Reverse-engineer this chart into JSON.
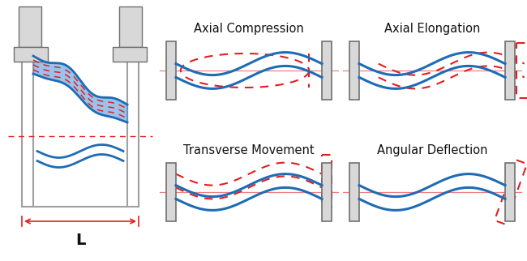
{
  "bg_color": "#ffffff",
  "blue": "#1e6cb5",
  "blue_fill": "#4a90d9",
  "red": "#e02020",
  "gray_dark": "#707070",
  "gray_med": "#a0a0a0",
  "gray_light": "#c8c8c8",
  "gray_fill": "#d8d8d8",
  "labels": [
    "Axial Compression",
    "Axial Elongation",
    "Transverse Movement",
    "Angular Deflection"
  ],
  "label_fontsize": 10.5,
  "L_fontsize": 14
}
